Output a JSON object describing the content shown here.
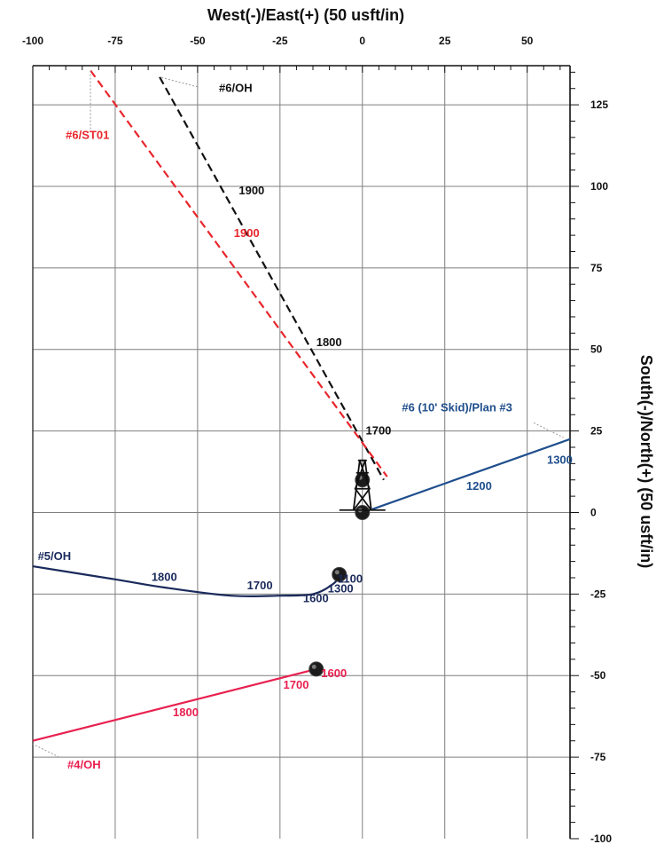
{
  "chart_data": {
    "type": "line",
    "xlabel": "West(-)/East(+) (50 usft/in)",
    "ylabel": "South(-)/North(+) (50 usft/in)",
    "xlim": [
      -100,
      63
    ],
    "ylim": [
      -100,
      137
    ],
    "x_ticks": [
      -100,
      -75,
      -50,
      -25,
      0,
      25,
      50
    ],
    "y_ticks": [
      125,
      100,
      75,
      50,
      25,
      0,
      -25,
      -50,
      -75,
      -100
    ],
    "x_tick_labels": [
      "-100",
      "-75",
      "-50",
      "-25",
      "0",
      "25",
      "50"
    ],
    "y_tick_labels": [
      "125",
      "100",
      "75",
      "50",
      "25",
      "0",
      "-25",
      "-50",
      "-75",
      "-100"
    ],
    "grid": true,
    "series": [
      {
        "name": "#6/OH",
        "color": "#111111",
        "dash": true,
        "points": [
          [
            -61.5,
            133.5
          ],
          [
            6.5,
            10
          ]
        ]
      },
      {
        "name": "#6/ST01",
        "color": "#e8262c",
        "dash": true,
        "points": [
          [
            -82.5,
            135.5
          ],
          [
            7.5,
            11
          ]
        ]
      },
      {
        "name": "#6 (10' Skid)/Plan #3",
        "color": "#1f4e8c",
        "dash": false,
        "points": [
          [
            3,
            1
          ],
          [
            63,
            22.5
          ]
        ]
      },
      {
        "name": "#5/OH",
        "color": "#1a2a5c",
        "dash": false,
        "points": [
          [
            -100,
            -16.5
          ],
          [
            -75,
            -20.5
          ],
          [
            -60,
            -23
          ],
          [
            -40,
            -25.5
          ],
          [
            -25,
            -25.5
          ],
          [
            -15,
            -25
          ],
          [
            -9,
            -22
          ],
          [
            -6.5,
            -19
          ]
        ]
      },
      {
        "name": "#4/OH",
        "color": "#e8204f",
        "dash": false,
        "points": [
          [
            -100,
            -70
          ],
          [
            -14,
            -48
          ]
        ]
      }
    ],
    "markers": [
      {
        "type": "dot",
        "x": -14,
        "y": -48
      },
      {
        "type": "dot",
        "x": -7,
        "y": -19
      },
      {
        "type": "dot",
        "x": 0,
        "y": 0
      },
      {
        "type": "dot",
        "x": 0,
        "y": 10
      },
      {
        "type": "rig",
        "x": 0,
        "y": 10
      }
    ],
    "annotations": [
      {
        "text": "#6/OH",
        "x": -43.5,
        "y": 129,
        "color": "#111111",
        "leader": [
          [
            -50,
            130.5
          ],
          [
            -61.5,
            133.5
          ]
        ]
      },
      {
        "text": "#6/ST01",
        "x": -90,
        "y": 114.5,
        "color": "#e8262c",
        "leader": [
          [
            -82.5,
            117.5
          ],
          [
            -82.5,
            135.5
          ]
        ]
      },
      {
        "text": "1900",
        "x": -37.5,
        "y": 97.5,
        "color": "#111111"
      },
      {
        "text": "1900",
        "x": -39,
        "y": 84.5,
        "color": "#e8262c"
      },
      {
        "text": "1800",
        "x": -14,
        "y": 51,
        "color": "#111111"
      },
      {
        "text": "1700",
        "x": 1,
        "y": 24,
        "color": "#111111"
      },
      {
        "text": "#6 (10' Skid)/Plan #3",
        "x": 12,
        "y": 31,
        "color": "#1f4e8c",
        "leader": [
          [
            52,
            27.5
          ],
          [
            61,
            23
          ]
        ]
      },
      {
        "text": "1300",
        "x": 56,
        "y": 15,
        "color": "#1f4e8c"
      },
      {
        "text": "1200",
        "x": 31.5,
        "y": 7,
        "color": "#1f4e8c"
      },
      {
        "text": "#5/OH",
        "x": -98.5,
        "y": -14.5,
        "color": "#1a2a5c"
      },
      {
        "text": "1800",
        "x": -64,
        "y": -21,
        "color": "#1a2a5c"
      },
      {
        "text": "1700",
        "x": -35,
        "y": -23.5,
        "color": "#1a2a5c"
      },
      {
        "text": "1600",
        "x": -18,
        "y": -27.5,
        "color": "#1a2a5c"
      },
      {
        "text": "1300",
        "x": -10.5,
        "y": -24.5,
        "color": "#1a2a5c"
      },
      {
        "text": "1100",
        "x": -7.5,
        "y": -21.5,
        "color": "#1a2a5c"
      },
      {
        "text": "1600",
        "x": -12.5,
        "y": -50.5,
        "color": "#e8204f"
      },
      {
        "text": "1700",
        "x": -24,
        "y": -54,
        "color": "#e8204f"
      },
      {
        "text": "1800",
        "x": -57.5,
        "y": -62.5,
        "color": "#e8204f"
      },
      {
        "text": "#4/OH",
        "x": -89.5,
        "y": -78.5,
        "color": "#e8204f",
        "leader": [
          [
            -92,
            -75
          ],
          [
            -100,
            -71
          ]
        ]
      }
    ]
  }
}
